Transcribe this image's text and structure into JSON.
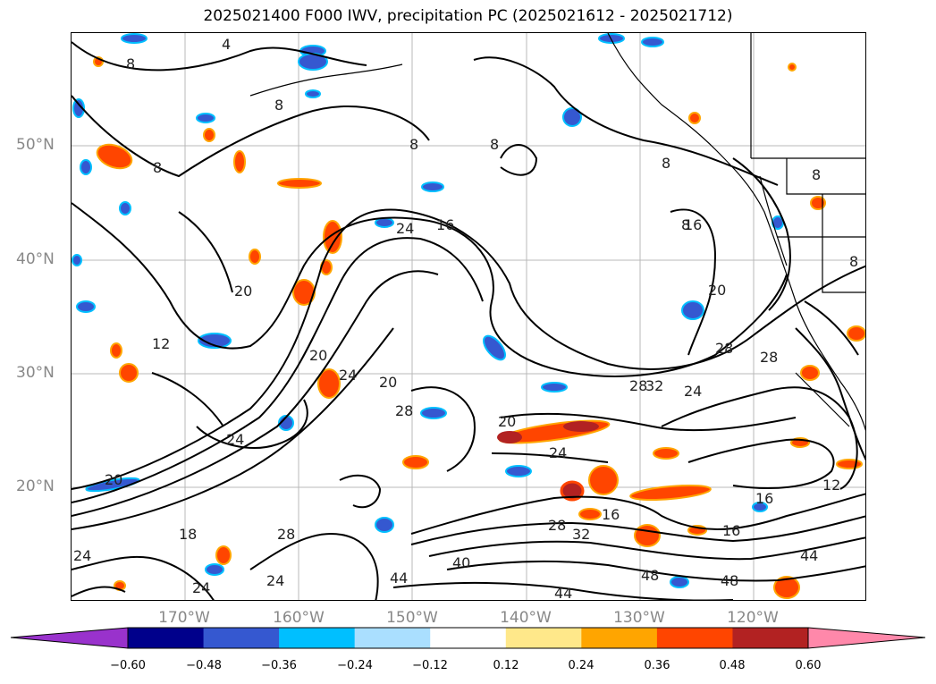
{
  "title": "2025021400 F000 IWV, precipitation PC (2025021612 - 2025021712)",
  "lat_labels": [
    "50°N",
    "40°N",
    "30°N",
    "20°N"
  ],
  "lon_labels": [
    "170°W",
    "160°W",
    "150°W",
    "140°W",
    "130°W",
    "120°W"
  ],
  "contour_labels": [
    "4",
    "8",
    "8",
    "8",
    "8",
    "8",
    "8",
    "8",
    "8",
    "8",
    "16",
    "24",
    "20",
    "20",
    "12",
    "20",
    "24",
    "28",
    "20",
    "24",
    "28",
    "28",
    "16",
    "20",
    "28",
    "24",
    "32",
    "12",
    "16",
    "16",
    "18",
    "24",
    "24",
    "24",
    "28",
    "24",
    "28",
    "32",
    "40",
    "44",
    "44",
    "48",
    "48",
    "44",
    "16",
    "20"
  ],
  "colorbar": {
    "ticks": [
      "−0.60",
      "−0.48",
      "−0.36",
      "−0.24",
      "−0.12",
      "0.12",
      "0.24",
      "0.36",
      "0.48",
      "0.60"
    ],
    "colors": [
      "#9932cc",
      "#00008b",
      "#3558d0",
      "#00bfff",
      "#aadfff",
      "#ffffff",
      "#ffe88a",
      "#ffa500",
      "#ff4500",
      "#b22222",
      "#ff88aa"
    ]
  }
}
